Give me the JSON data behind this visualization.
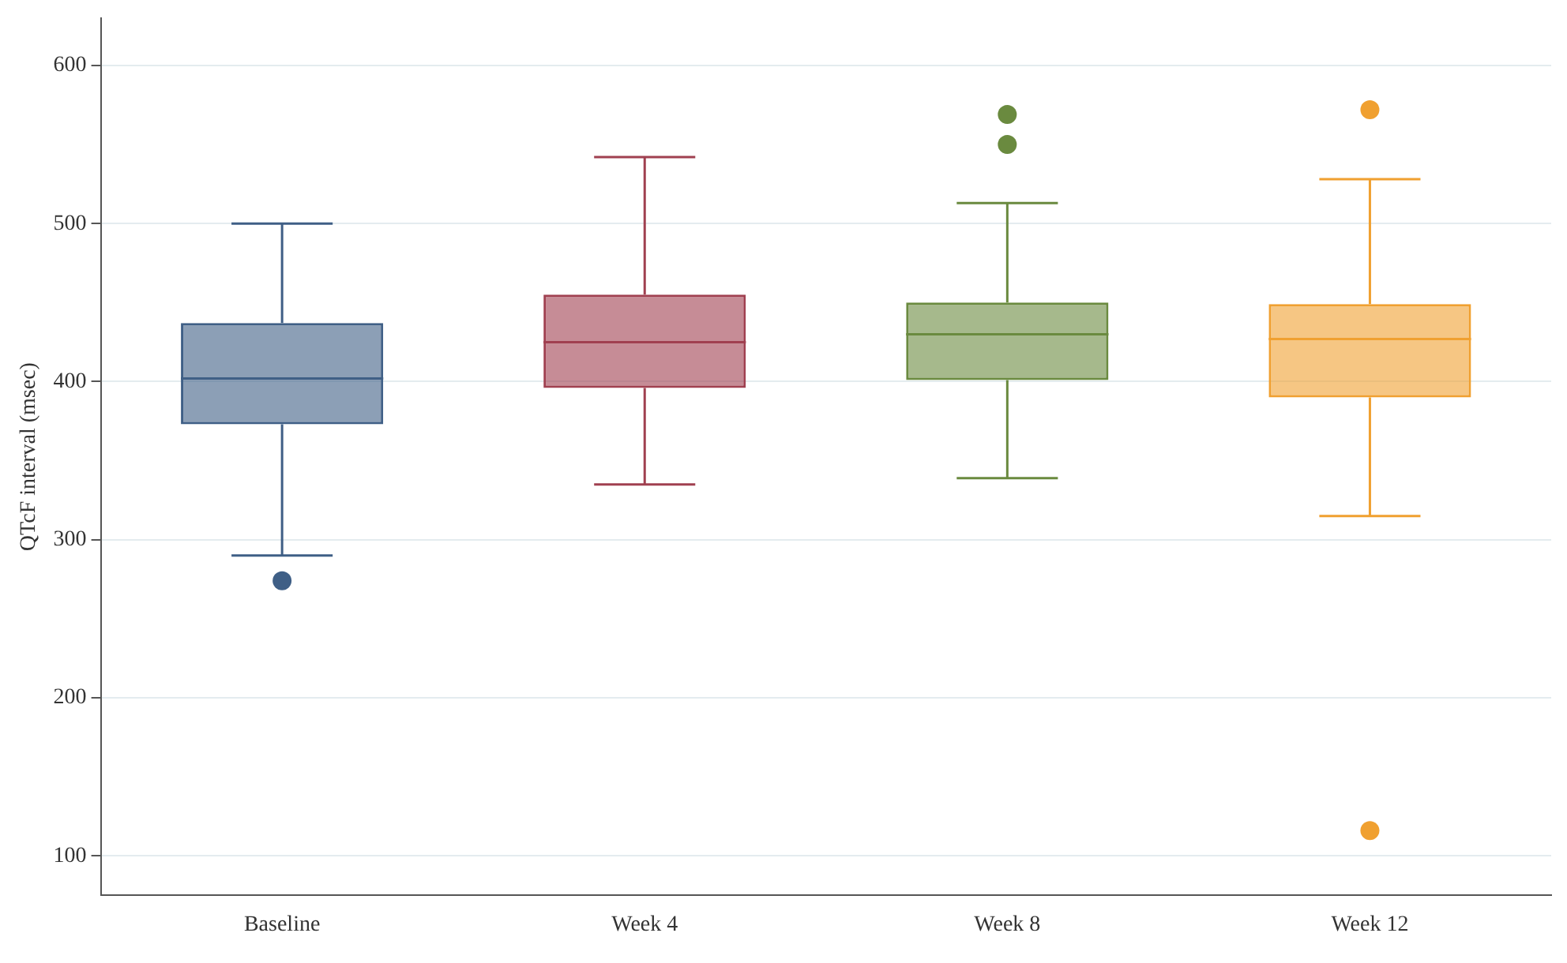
{
  "chart_data": {
    "type": "box",
    "ylabel": "QTcF interval (msec)",
    "categories": [
      "Baseline",
      "Week 4",
      "Week 8",
      "Week 12"
    ],
    "colors": [
      "#3f5f86",
      "#a04050",
      "#6a8a3f",
      "#f0a030"
    ],
    "boxes": [
      {
        "low": 290,
        "q1": 373,
        "median": 402,
        "q3": 437,
        "high": 500,
        "outliers": [
          274
        ]
      },
      {
        "low": 335,
        "q1": 396,
        "median": 425,
        "q3": 455,
        "high": 542
      },
      {
        "low": 339,
        "q1": 401,
        "median": 430,
        "q3": 450,
        "high": 513,
        "outliers": [
          569,
          550
        ]
      },
      {
        "low": 315,
        "q1": 390,
        "median": 427,
        "q3": 449,
        "high": 528,
        "outliers": [
          572,
          116
        ]
      }
    ],
    "ylim": [
      75,
      630
    ],
    "yticks": [
      100,
      200,
      300,
      400,
      500,
      600
    ],
    "grid": "y",
    "marker": "circle"
  }
}
